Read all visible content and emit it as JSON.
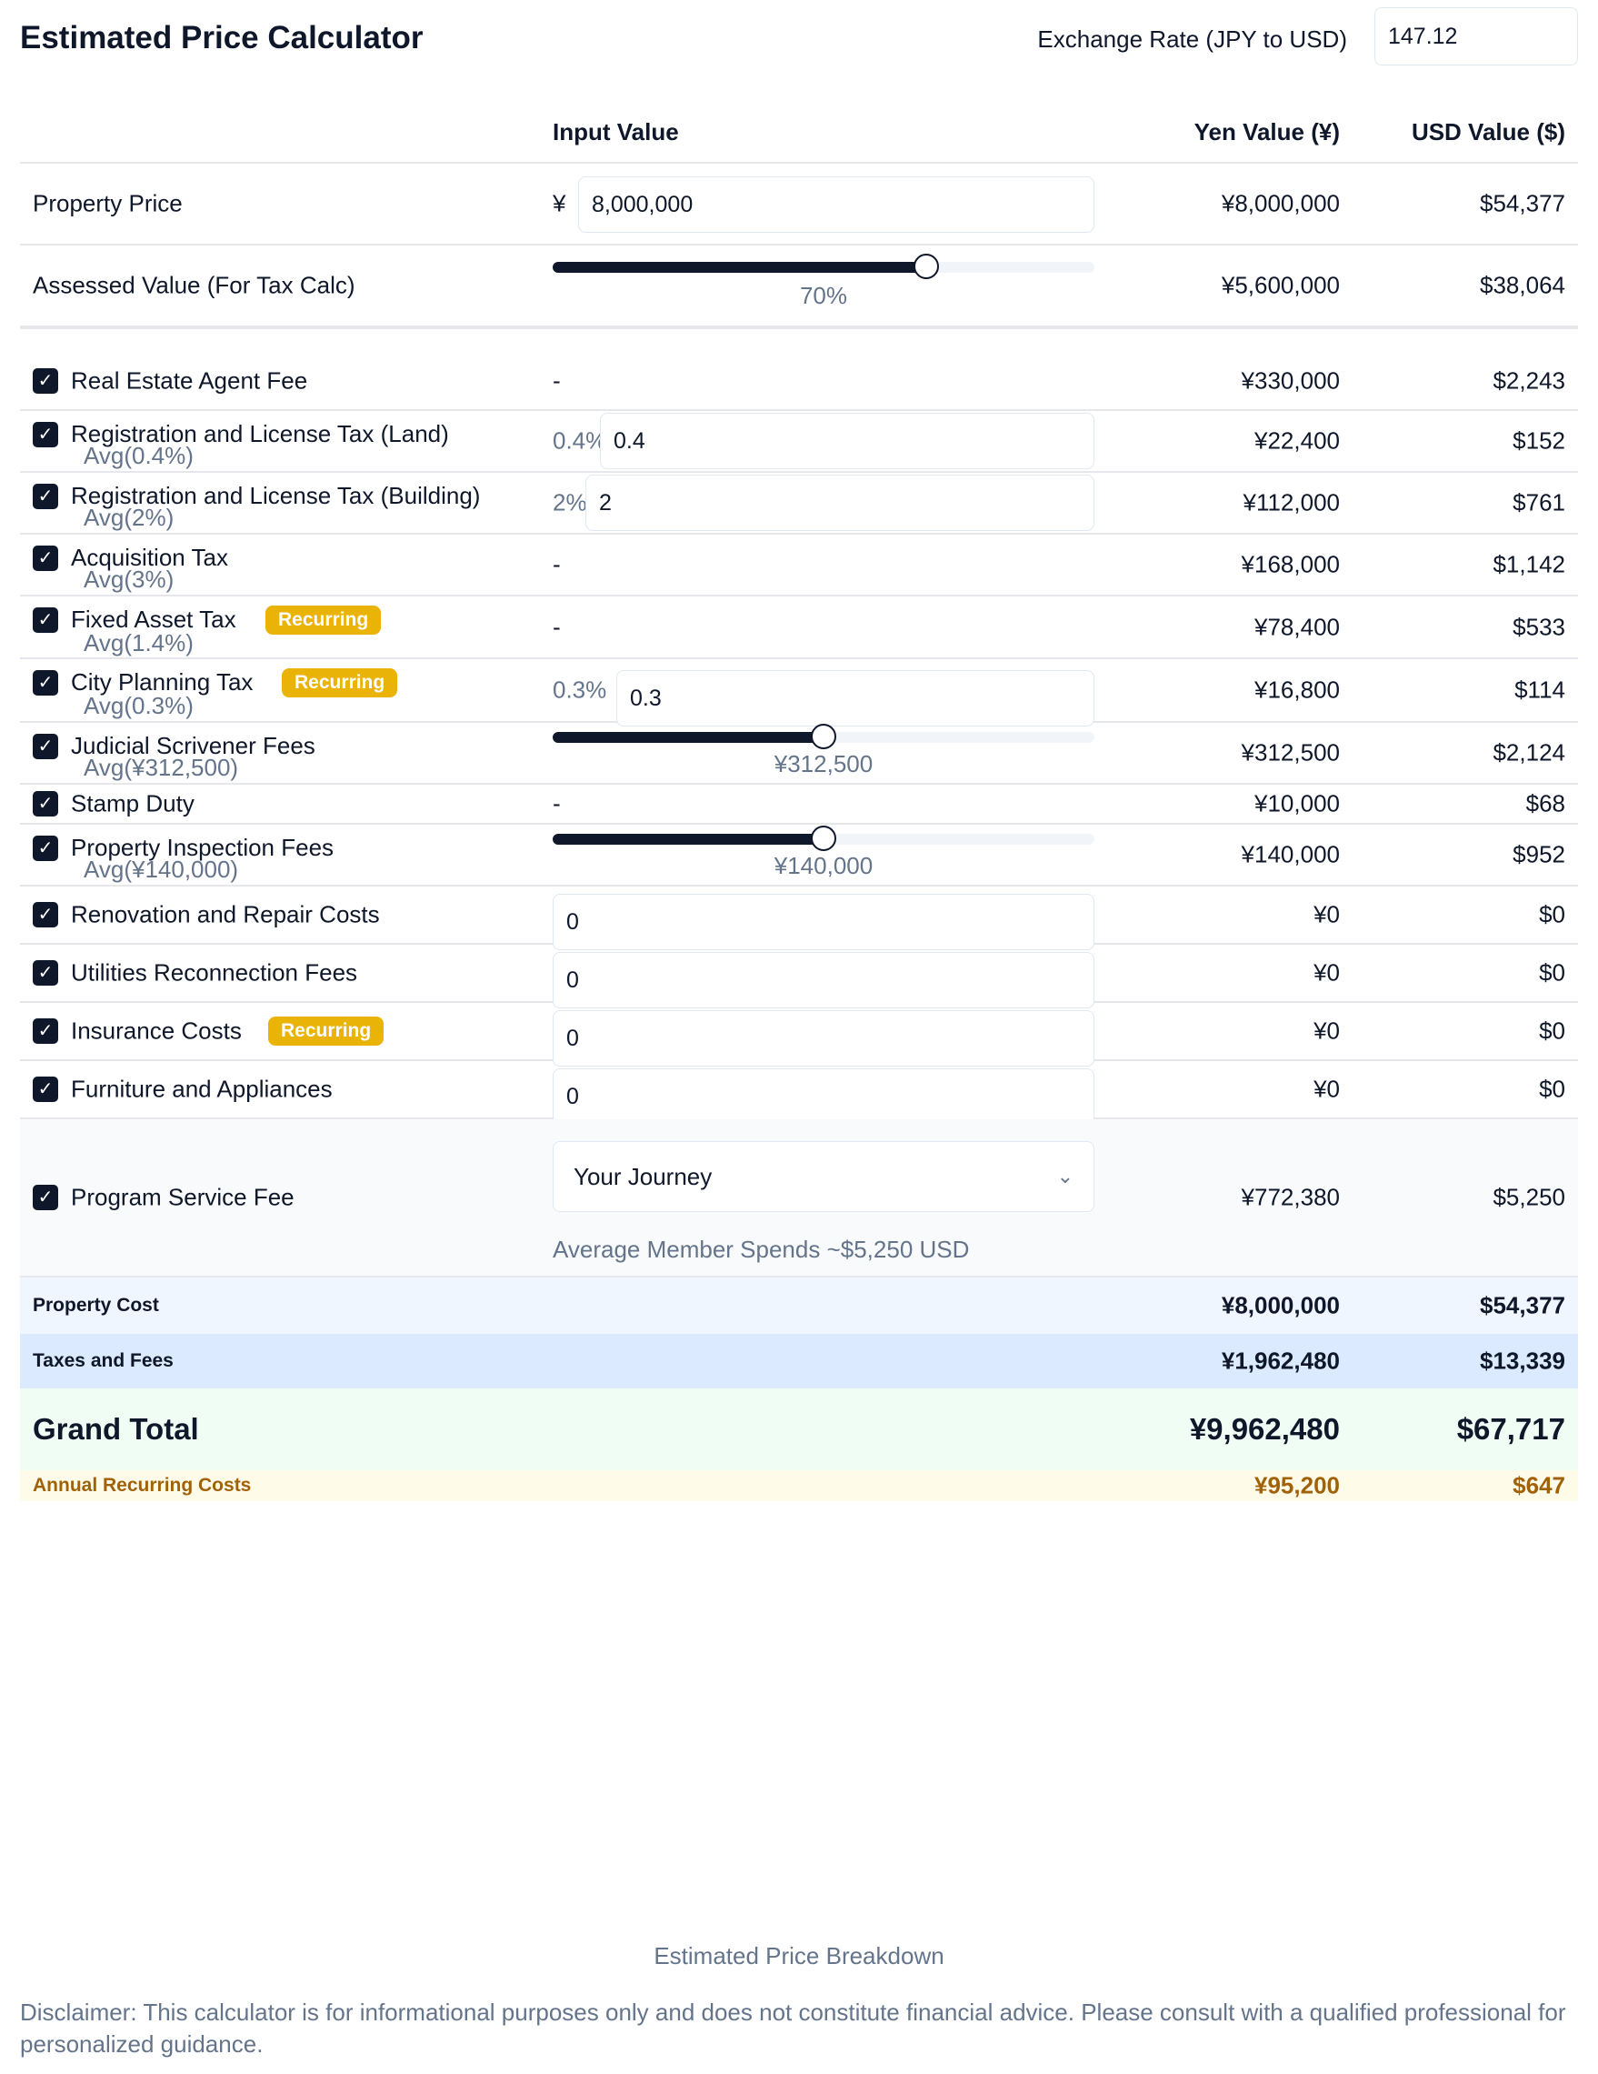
{
  "header": {
    "title": "Estimated Price Calculator",
    "exchange_rate_label": "Exchange Rate (JPY to USD)",
    "exchange_rate_value": "147.12"
  },
  "columns": {
    "input": "Input Value",
    "yen": "Yen Value (¥)",
    "usd": "USD Value ($)"
  },
  "property_price": {
    "label": "Property Price",
    "currency_symbol": "¥",
    "input_value": "8,000,000",
    "yen": "¥8,000,000",
    "usd": "$54,377"
  },
  "assessed_value": {
    "label": "Assessed Value (For Tax Calc)",
    "slider_percent": 70,
    "slider_text": "70%",
    "yen": "¥5,600,000",
    "usd": "$38,064"
  },
  "items": {
    "agent_fee": {
      "label": "Real Estate Agent Fee",
      "input": "-",
      "yen": "¥330,000",
      "usd": "$2,243"
    },
    "reg_land": {
      "label": "Registration and License Tax (Land)",
      "avg": "Avg(0.4%)",
      "pct": "0.4%",
      "input_value": "0.4",
      "yen": "¥22,400",
      "usd": "$152"
    },
    "reg_building": {
      "label": "Registration and License Tax (Building)",
      "avg": "Avg(2%)",
      "pct": "2%",
      "input_value": "2",
      "yen": "¥112,000",
      "usd": "$761"
    },
    "acquisition": {
      "label": "Acquisition Tax",
      "avg": "Avg(3%)",
      "input": "-",
      "yen": "¥168,000",
      "usd": "$1,142"
    },
    "fixed_asset": {
      "label": "Fixed Asset Tax",
      "badge": "Recurring",
      "avg": "Avg(1.4%)",
      "input": "-",
      "yen": "¥78,400",
      "usd": "$533"
    },
    "city_planning": {
      "label": "City Planning Tax",
      "badge": "Recurring",
      "avg": "Avg(0.3%)",
      "pct": "0.3%",
      "input_value": "0.3",
      "yen": "¥16,800",
      "usd": "$114"
    },
    "scrivener": {
      "label": "Judicial Scrivener Fees",
      "avg": "Avg(¥312,500)",
      "slider_percent": 50,
      "slider_text": "¥312,500",
      "yen": "¥312,500",
      "usd": "$2,124"
    },
    "stamp": {
      "label": "Stamp Duty",
      "input": "-",
      "yen": "¥10,000",
      "usd": "$68"
    },
    "inspection": {
      "label": "Property Inspection Fees",
      "avg": "Avg(¥140,000)",
      "slider_percent": 50,
      "slider_text": "¥140,000",
      "yen": "¥140,000",
      "usd": "$952"
    },
    "renovation": {
      "label": "Renovation and Repair Costs",
      "input_value": "0",
      "yen": "¥0",
      "usd": "$0"
    },
    "utilities": {
      "label": "Utilities Reconnection Fees",
      "input_value": "0",
      "yen": "¥0",
      "usd": "$0"
    },
    "insurance": {
      "label": "Insurance Costs",
      "badge": "Recurring",
      "input_value": "0",
      "yen": "¥0",
      "usd": "$0"
    },
    "furniture": {
      "label": "Furniture and Appliances",
      "input_value": "0",
      "yen": "¥0",
      "usd": "$0"
    },
    "program_fee": {
      "label": "Program Service Fee",
      "select_value": "Your Journey",
      "note": "Average Member Spends ~$5,250 USD",
      "yen": "¥772,380",
      "usd": "$5,250"
    }
  },
  "summary": {
    "property_cost": {
      "label": "Property Cost",
      "yen": "¥8,000,000",
      "usd": "$54,377"
    },
    "taxes_fees": {
      "label": "Taxes and Fees",
      "yen": "¥1,962,480",
      "usd": "$13,339"
    },
    "grand_total": {
      "label": "Grand Total",
      "yen": "¥9,962,480",
      "usd": "$67,717"
    },
    "annual_recurring": {
      "label": "Annual Recurring Costs",
      "yen": "¥95,200",
      "usd": "$647"
    }
  },
  "footer": {
    "caption": "Estimated Price Breakdown",
    "disclaimer": "Disclaimer: This calculator is for informational purposes only and does not constitute financial advice. Please consult with a qualified professional for personalized guidance."
  },
  "colors": {
    "accent": "#0f172a",
    "muted": "#64748b",
    "badge": "#eab308",
    "property_cost_bg": "#eff6ff",
    "taxes_fees_bg": "#dbeafe",
    "grand_total_bg": "#f0fdf4",
    "recurring_bg": "#fefce8",
    "recurring_text": "#a16207"
  },
  "icons": {
    "checkbox": "check-icon",
    "select": "chevron-down-icon"
  }
}
